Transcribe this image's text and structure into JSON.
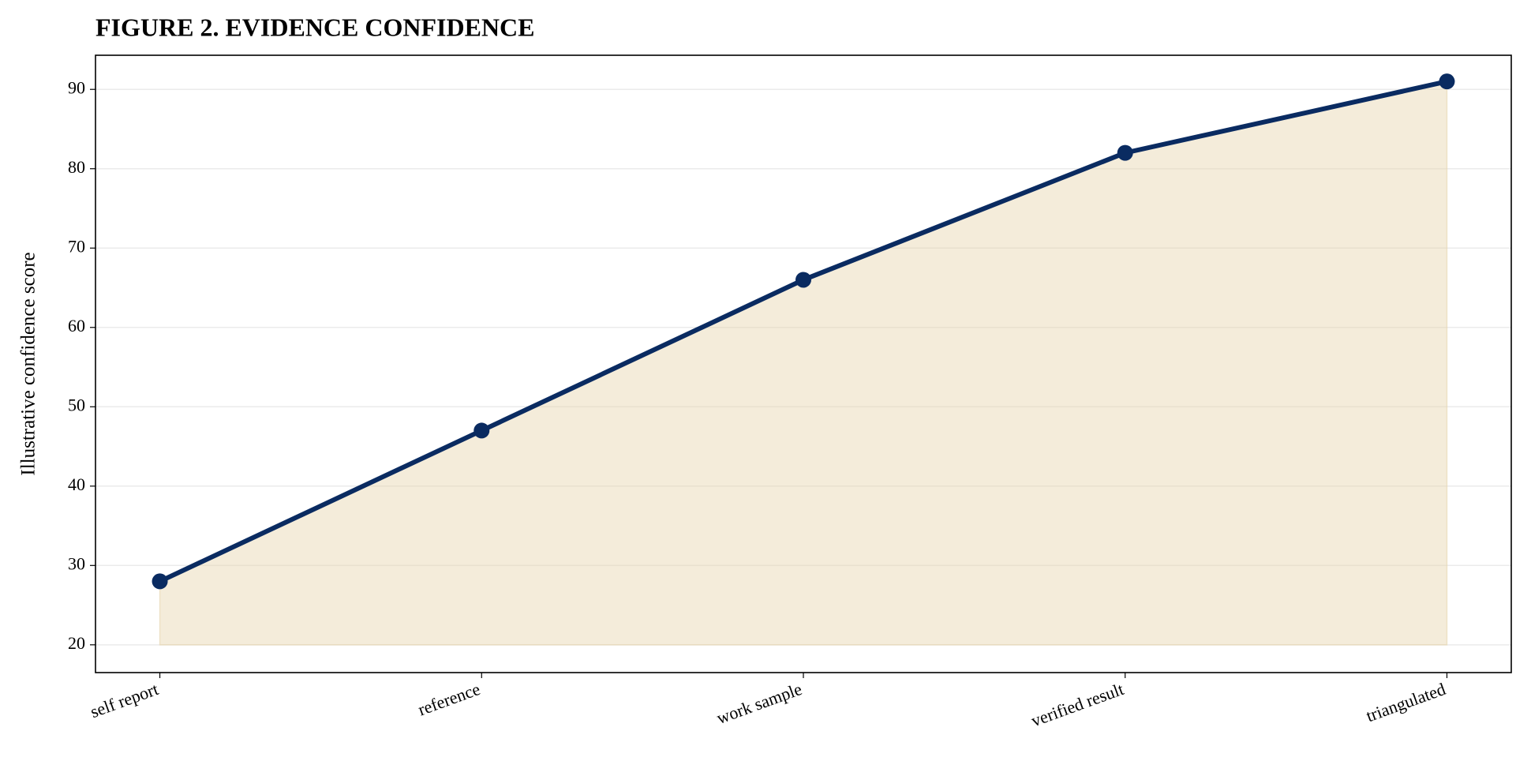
{
  "chart_data": {
    "type": "line",
    "title": "FIGURE 2. EVIDENCE CONFIDENCE",
    "y_label": "Illustrative confidence score",
    "categories": [
      "self report",
      "reference",
      "work sample",
      "verified result",
      "triangulated"
    ],
    "values": [
      28,
      47,
      66,
      82,
      91
    ],
    "color": "#0a2b61",
    "fill_color": "#e6d5ad",
    "fill_base": 20,
    "ylim": [
      16.5,
      94.3
    ],
    "yticks": [
      20,
      30,
      40,
      50,
      60,
      70,
      80,
      90
    ],
    "grid": true
  }
}
